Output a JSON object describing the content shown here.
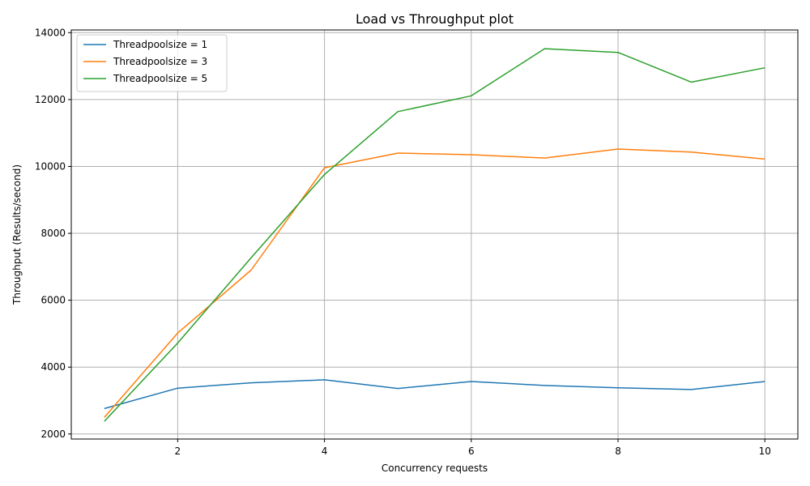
{
  "chart_data": {
    "type": "line",
    "title": "Load vs Throughput plot",
    "xlabel": "Concurrency requests",
    "ylabel": "Throughput (Results/second)",
    "xlim": [
      0.55,
      10.45
    ],
    "ylim": [
      1850,
      14080
    ],
    "xticks": [
      2,
      4,
      6,
      8,
      10
    ],
    "yticks": [
      2000,
      4000,
      6000,
      8000,
      10000,
      12000,
      14000
    ],
    "grid": true,
    "legend_position": "top-left",
    "x": [
      1,
      2,
      3,
      4,
      5,
      6,
      7,
      8,
      9,
      10
    ],
    "series": [
      {
        "name": "Threadpoolsize = 1",
        "color": "#1f77b4",
        "values": [
          2760,
          3370,
          3530,
          3620,
          3360,
          3570,
          3450,
          3380,
          3330,
          3570
        ]
      },
      {
        "name": "Threadpoolsize = 3",
        "color": "#ff7f0e",
        "values": [
          2500,
          5020,
          6900,
          9960,
          10400,
          10350,
          10250,
          10520,
          10430,
          10220
        ]
      },
      {
        "name": "Threadpoolsize = 5",
        "color": "#2ca02c",
        "values": [
          2380,
          4720,
          7270,
          9760,
          11640,
          12110,
          13520,
          13410,
          12520,
          12950
        ]
      }
    ]
  }
}
